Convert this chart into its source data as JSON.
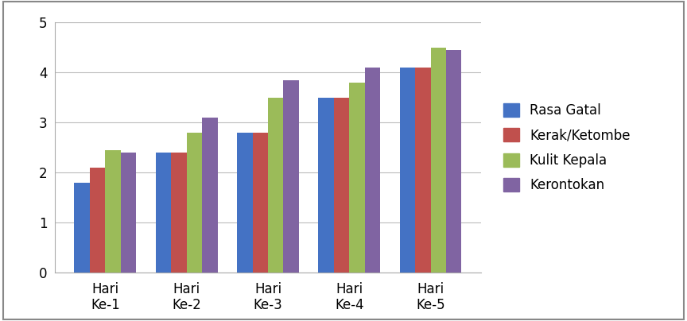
{
  "categories": [
    "Hari\nKe-1",
    "Hari\nKe-2",
    "Hari\nKe-3",
    "Hari\nKe-4",
    "Hari\nKe-5"
  ],
  "series": {
    "Rasa Gatal": [
      1.8,
      2.4,
      2.8,
      3.5,
      4.1
    ],
    "Kerak/Ketombe": [
      2.1,
      2.4,
      2.8,
      3.5,
      4.1
    ],
    "Kulit Kepala": [
      2.45,
      2.8,
      3.5,
      3.8,
      4.5
    ],
    "Kerontokan": [
      2.4,
      3.1,
      3.85,
      4.1,
      4.45
    ]
  },
  "colors": {
    "Rasa Gatal": "#4472C4",
    "Kerak/Ketombe": "#C0504D",
    "Kulit Kepala": "#9BBB59",
    "Kerontokan": "#8064A2"
  },
  "ylim": [
    0,
    5
  ],
  "yticks": [
    0,
    1,
    2,
    3,
    4,
    5
  ],
  "bar_width": 0.19,
  "background_color": "#FFFFFF",
  "grid_color": "#BBBBBB",
  "border_color": "#AAAAAA"
}
